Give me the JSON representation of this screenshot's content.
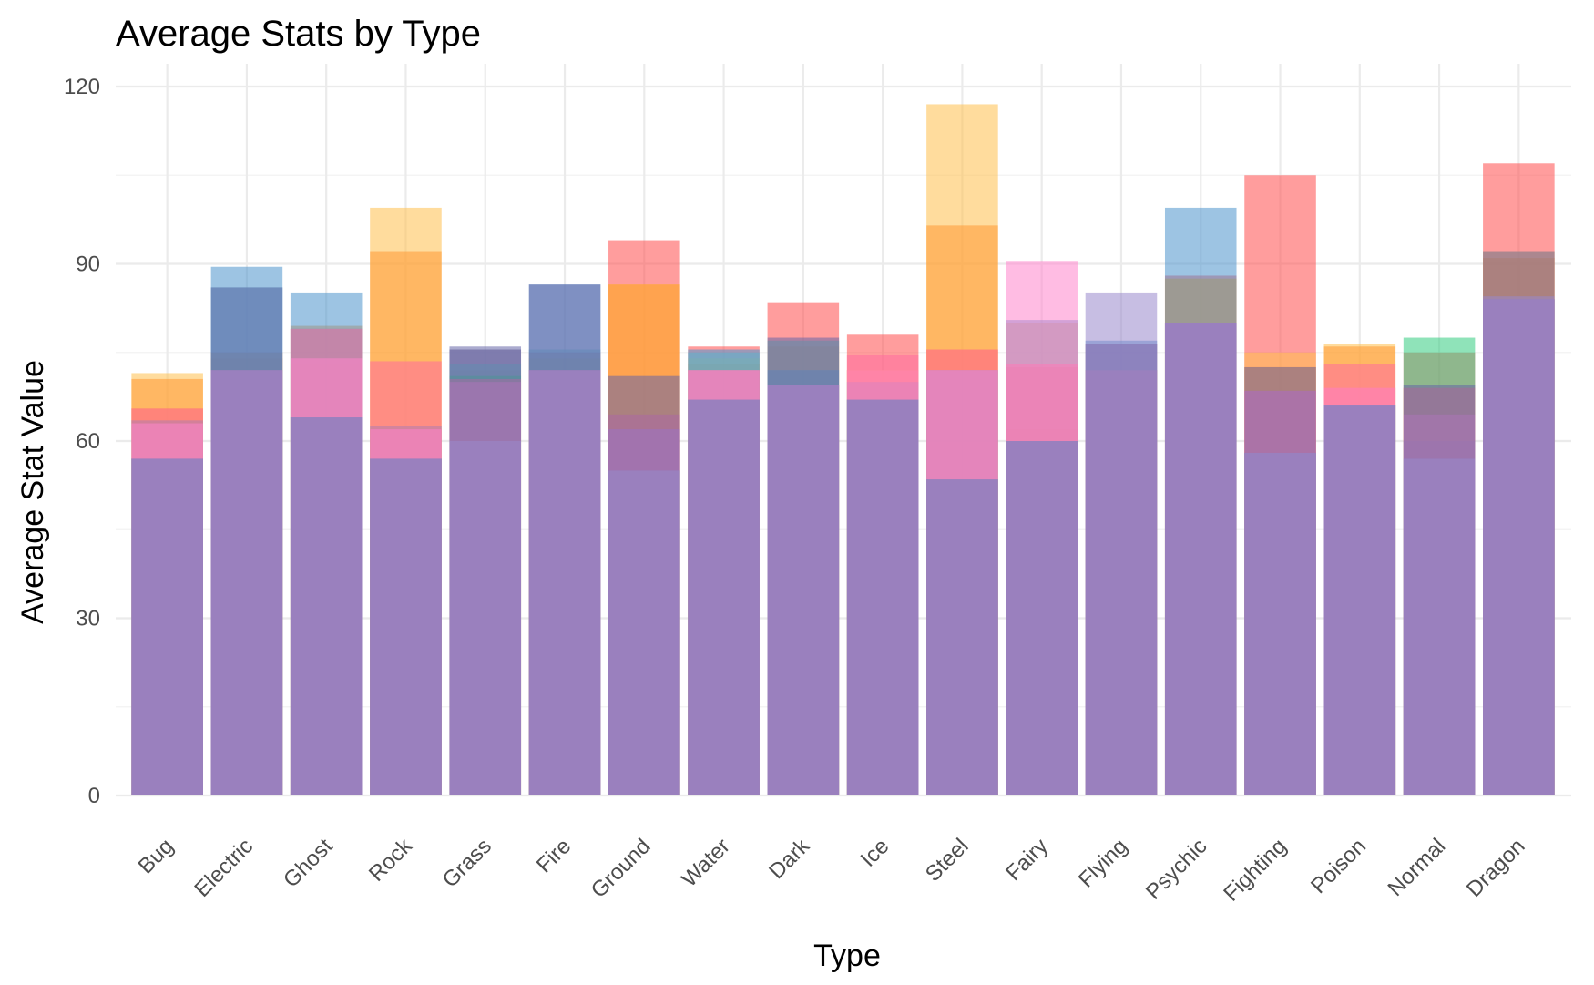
{
  "chart_data": {
    "type": "bar",
    "title": "Average Stats by Type",
    "xlabel": "Type",
    "ylabel": "Average Stat Value",
    "ylim": [
      0,
      120
    ],
    "yticks": [
      "0",
      "30",
      "60",
      "90",
      "120"
    ],
    "grid": true,
    "legend": "none",
    "categories": [
      "Bug",
      "Electric",
      "Ghost",
      "Rock",
      "Grass",
      "Fire",
      "Ground",
      "Water",
      "Dark",
      "Ice",
      "Steel",
      "Fairy",
      "Flying",
      "Psychic",
      "Fighting",
      "Poison",
      "Normal",
      "Dragon"
    ],
    "series": [
      {
        "color": "#FF4D4D",
        "values": [
          65.5,
          75,
          79,
          62,
          75.5,
          75,
          94,
          76,
          83.5,
          78,
          75.5,
          62,
          76.5,
          88,
          105,
          69,
          75,
          107
        ]
      },
      {
        "color": "#FFC04D",
        "values": [
          71.5,
          75,
          73,
          99.5,
          73,
          71.5,
          86.5,
          74,
          77,
          72,
          117,
          80,
          72,
          87.5,
          75,
          76.5,
          69,
          92
        ]
      },
      {
        "color": "#FF9933",
        "values": [
          70.5,
          74,
          79.5,
          92,
          72,
          74,
          86.5,
          73,
          76,
          72,
          96.5,
          72.5,
          72,
          87.5,
          72.5,
          76,
          69,
          91
        ]
      },
      {
        "color": "#4D94CC",
        "values": [
          63.5,
          89.5,
          85,
          62.5,
          75.5,
          86.5,
          62,
          75.5,
          72,
          70,
          72,
          80.5,
          77,
          99.5,
          58,
          66,
          60,
          84
        ]
      },
      {
        "color": "#5CB3CC",
        "values": [
          57,
          86,
          79,
          57,
          73,
          75.5,
          55,
          75,
          77,
          67,
          72,
          60,
          72,
          80,
          58,
          66,
          57,
          84
        ]
      },
      {
        "color": "#33CC80",
        "values": [
          57,
          72,
          64,
          57,
          71,
          72,
          55,
          67,
          69.5,
          67,
          53.5,
          60,
          72,
          80,
          58,
          66,
          77.5,
          84
        ]
      },
      {
        "color": "#FF6B9E",
        "values": [
          65.5,
          72,
          79,
          73.5,
          70.5,
          72,
          64.5,
          72,
          69.5,
          74.5,
          75.5,
          73,
          72,
          80,
          68.5,
          73,
          69,
          84
        ]
      },
      {
        "color": "#FF85CC",
        "values": [
          63,
          72,
          74,
          62,
          70,
          72,
          62,
          72,
          69.5,
          72,
          72,
          90.5,
          72,
          80,
          68.5,
          69,
          64.5,
          84
        ]
      },
      {
        "color": "#6666A8",
        "values": [
          57,
          86,
          64,
          57,
          76,
          86.5,
          71,
          67,
          77.5,
          67,
          53.5,
          60,
          76.5,
          80,
          72.5,
          66,
          69.5,
          92
        ]
      },
      {
        "color": "#9988CC",
        "values": [
          57,
          72,
          64,
          57,
          60,
          72,
          55,
          67,
          69.5,
          67,
          53.5,
          60,
          85,
          80,
          58,
          66,
          57,
          84.5
        ]
      }
    ]
  }
}
